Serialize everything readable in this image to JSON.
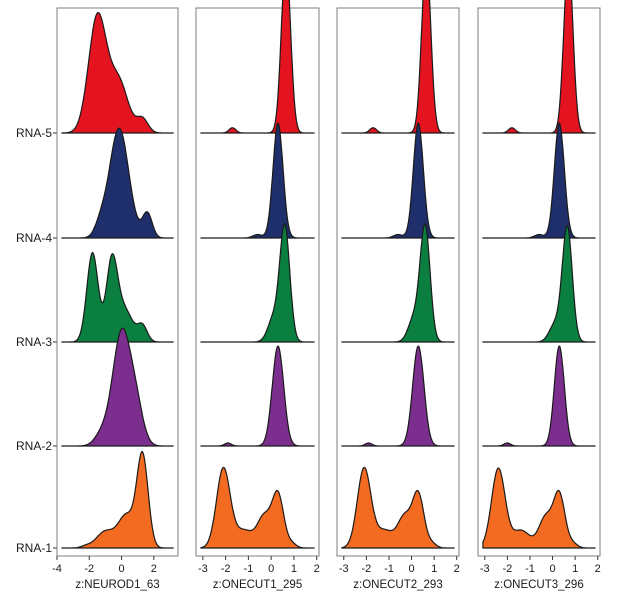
{
  "chart_data": {
    "type": "ridgeline",
    "y_categories": [
      "RNA-1",
      "RNA-2",
      "RNA-3",
      "RNA-4",
      "RNA-5"
    ],
    "colors": {
      "RNA-1": "#f26b21",
      "RNA-2": "#7b2e8e",
      "RNA-3": "#0a7f3f",
      "RNA-4": "#1f2f6b",
      "RNA-5": "#e3141f"
    },
    "grid": false,
    "legend": "none",
    "panels": [
      {
        "xlabel": "z:NEUROD1_63",
        "xlim": [
          -4,
          3.5
        ],
        "xticks": [
          -4,
          -2,
          0,
          2
        ],
        "ridges": [
          {
            "category": "RNA-1",
            "peaks": [
              {
                "mu": 1.3,
                "sd": 0.35,
                "h": 1.0
              },
              {
                "mu": 0.3,
                "sd": 0.5,
                "h": 0.35
              },
              {
                "mu": -1.0,
                "sd": 0.55,
                "h": 0.18
              },
              {
                "mu": -2.2,
                "sd": 0.3,
                "h": 0.02
              }
            ]
          },
          {
            "category": "RNA-2",
            "peaks": [
              {
                "mu": 0.0,
                "sd": 0.55,
                "h": 0.95
              },
              {
                "mu": 0.9,
                "sd": 0.45,
                "h": 0.3
              },
              {
                "mu": -1.2,
                "sd": 0.45,
                "h": 0.1
              }
            ]
          },
          {
            "category": "RNA-3",
            "peaks": [
              {
                "mu": -1.8,
                "sd": 0.35,
                "h": 0.85
              },
              {
                "mu": -0.6,
                "sd": 0.35,
                "h": 0.75
              },
              {
                "mu": 0.2,
                "sd": 0.5,
                "h": 0.3
              },
              {
                "mu": 1.3,
                "sd": 0.3,
                "h": 0.15
              }
            ]
          },
          {
            "category": "RNA-4",
            "peaks": [
              {
                "mu": -0.15,
                "sd": 0.6,
                "h": 0.98
              },
              {
                "mu": 1.6,
                "sd": 0.3,
                "h": 0.22
              },
              {
                "mu": -1.3,
                "sd": 0.35,
                "h": 0.1
              }
            ]
          },
          {
            "category": "RNA-5",
            "peaks": [
              {
                "mu": -1.5,
                "sd": 0.55,
                "h": 1.0
              },
              {
                "mu": -0.2,
                "sd": 0.6,
                "h": 0.45
              },
              {
                "mu": 1.3,
                "sd": 0.35,
                "h": 0.12
              }
            ]
          }
        ]
      },
      {
        "xlabel": "z:ONECUT1_295",
        "xlim": [
          -3.3,
          2.1
        ],
        "xticks": [
          -3,
          -2,
          -1,
          0,
          1,
          2
        ],
        "ridges": [
          {
            "category": "RNA-1",
            "peaks": [
              {
                "mu": -2.1,
                "sd": 0.3,
                "h": 0.9
              },
              {
                "mu": 0.3,
                "sd": 0.25,
                "h": 0.6
              },
              {
                "mu": -0.3,
                "sd": 0.3,
                "h": 0.35
              },
              {
                "mu": -1.2,
                "sd": 0.4,
                "h": 0.2
              },
              {
                "mu": 0.9,
                "sd": 0.2,
                "h": 0.05
              }
            ]
          },
          {
            "category": "RNA-2",
            "peaks": [
              {
                "mu": 0.3,
                "sd": 0.25,
                "h": 1.0
              },
              {
                "mu": -1.9,
                "sd": 0.15,
                "h": 0.03
              }
            ]
          },
          {
            "category": "RNA-3",
            "peaks": [
              {
                "mu": 0.6,
                "sd": 0.22,
                "h": 1.0
              },
              {
                "mu": 0.1,
                "sd": 0.25,
                "h": 0.2
              }
            ]
          },
          {
            "category": "RNA-4",
            "peaks": [
              {
                "mu": 0.3,
                "sd": 0.22,
                "h": 1.0
              },
              {
                "mu": -0.6,
                "sd": 0.2,
                "h": 0.03
              }
            ]
          },
          {
            "category": "RNA-5",
            "peaks": [
              {
                "mu": 0.65,
                "sd": 0.2,
                "h": 1.0
              },
              {
                "mu": -1.7,
                "sd": 0.15,
                "h": 0.03
              }
            ]
          }
        ]
      },
      {
        "xlabel": "z:ONECUT2_293",
        "xlim": [
          -3.3,
          2.1
        ],
        "xticks": [
          -3,
          -2,
          -1,
          0,
          1,
          2
        ],
        "ridges": [
          {
            "category": "RNA-1",
            "peaks": [
              {
                "mu": -2.1,
                "sd": 0.3,
                "h": 0.9
              },
              {
                "mu": 0.3,
                "sd": 0.25,
                "h": 0.6
              },
              {
                "mu": -0.3,
                "sd": 0.3,
                "h": 0.35
              },
              {
                "mu": -1.2,
                "sd": 0.4,
                "h": 0.2
              },
              {
                "mu": 0.9,
                "sd": 0.2,
                "h": 0.05
              }
            ]
          },
          {
            "category": "RNA-2",
            "peaks": [
              {
                "mu": 0.3,
                "sd": 0.25,
                "h": 1.0
              },
              {
                "mu": -1.9,
                "sd": 0.15,
                "h": 0.03
              }
            ]
          },
          {
            "category": "RNA-3",
            "peaks": [
              {
                "mu": 0.6,
                "sd": 0.22,
                "h": 1.0
              },
              {
                "mu": 0.1,
                "sd": 0.25,
                "h": 0.2
              }
            ]
          },
          {
            "category": "RNA-4",
            "peaks": [
              {
                "mu": 0.3,
                "sd": 0.22,
                "h": 1.0
              },
              {
                "mu": -0.6,
                "sd": 0.2,
                "h": 0.03
              }
            ]
          },
          {
            "category": "RNA-5",
            "peaks": [
              {
                "mu": 0.65,
                "sd": 0.2,
                "h": 1.0
              },
              {
                "mu": -1.7,
                "sd": 0.15,
                "h": 0.03
              }
            ]
          }
        ]
      },
      {
        "xlabel": "z:ONECUT3_296",
        "xlim": [
          -3.3,
          2.1
        ],
        "xticks": [
          -3,
          -2,
          -1,
          0,
          1,
          2
        ],
        "ridges": [
          {
            "category": "RNA-1",
            "peaks": [
              {
                "mu": -2.4,
                "sd": 0.3,
                "h": 0.9
              },
              {
                "mu": 0.3,
                "sd": 0.25,
                "h": 0.6
              },
              {
                "mu": -0.3,
                "sd": 0.3,
                "h": 0.35
              },
              {
                "mu": -1.4,
                "sd": 0.4,
                "h": 0.2
              },
              {
                "mu": 0.9,
                "sd": 0.2,
                "h": 0.05
              }
            ]
          },
          {
            "category": "RNA-2",
            "peaks": [
              {
                "mu": 0.3,
                "sd": 0.22,
                "h": 1.0
              },
              {
                "mu": -2.0,
                "sd": 0.15,
                "h": 0.03
              }
            ]
          },
          {
            "category": "RNA-3",
            "peaks": [
              {
                "mu": 0.65,
                "sd": 0.22,
                "h": 1.0
              },
              {
                "mu": 0.1,
                "sd": 0.25,
                "h": 0.15
              }
            ]
          },
          {
            "category": "RNA-4",
            "peaks": [
              {
                "mu": 0.3,
                "sd": 0.22,
                "h": 1.0
              },
              {
                "mu": -0.6,
                "sd": 0.2,
                "h": 0.03
              }
            ]
          },
          {
            "category": "RNA-5",
            "peaks": [
              {
                "mu": 0.7,
                "sd": 0.2,
                "h": 1.0
              },
              {
                "mu": -1.8,
                "sd": 0.15,
                "h": 0.03
              }
            ]
          }
        ]
      }
    ]
  }
}
